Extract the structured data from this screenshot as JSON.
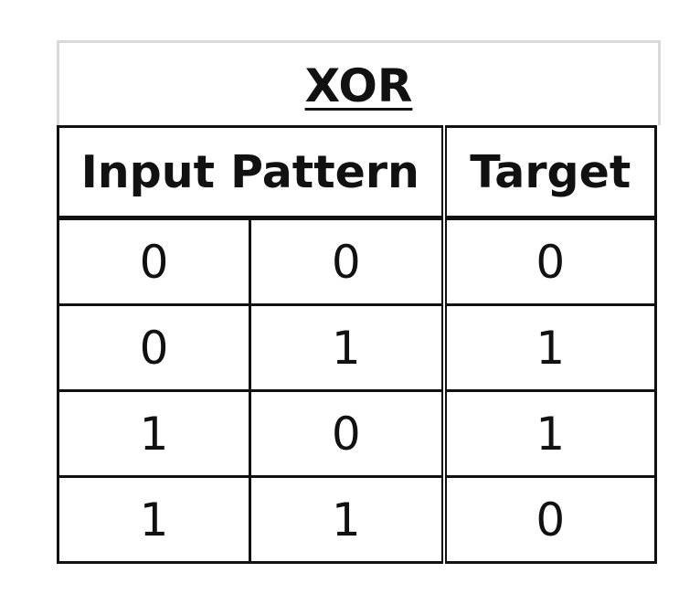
{
  "title": "XOR",
  "headers": {
    "input": "Input Pattern",
    "target": "Target"
  },
  "rows": [
    {
      "a": "0",
      "b": "0",
      "target": "0"
    },
    {
      "a": "0",
      "b": "1",
      "target": "1"
    },
    {
      "a": "1",
      "b": "0",
      "target": "1"
    },
    {
      "a": "1",
      "b": "1",
      "target": "0"
    }
  ]
}
